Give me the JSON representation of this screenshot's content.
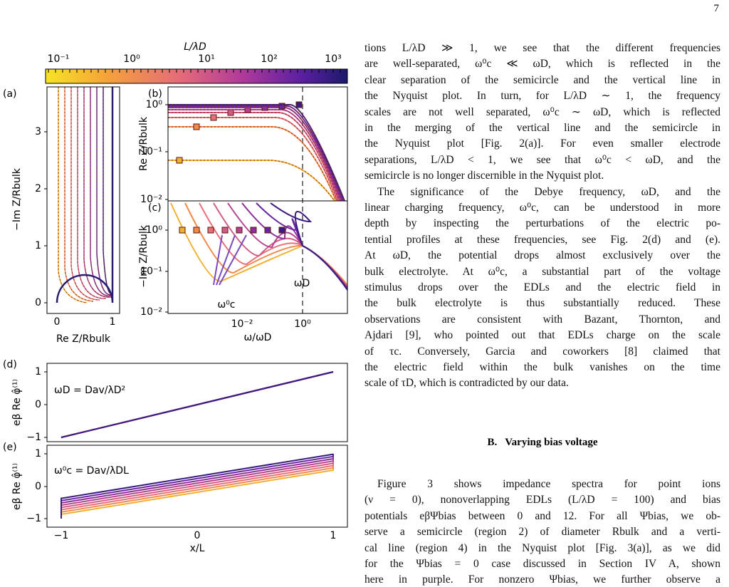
{
  "page_number": "7",
  "figure": {
    "colorbar": {
      "label": "L/λD",
      "ticks": [
        "10⁻¹",
        "10⁰",
        "10¹",
        "10²",
        "10³"
      ]
    },
    "panels": [
      {
        "label": "(a)",
        "x_label": "Re Z/Rbulk",
        "y_label": "−Im Z/Rbulk",
        "x_ticks": [
          "0",
          "1"
        ],
        "y_ticks": [
          "3",
          "2",
          "1",
          "0"
        ]
      },
      {
        "label": "(b)",
        "y_label": "Re Z/Rbulk",
        "y_ticks": [
          "10⁰",
          "10⁻¹",
          "10⁻²"
        ]
      },
      {
        "label": "(c)",
        "x_label": "ω/ωD",
        "y_label": "−Im Z/Rbulk",
        "x_ticks": [
          "10⁻²",
          "10⁰"
        ],
        "y_ticks": [
          "10⁰",
          "10⁻¹",
          "10⁻²"
        ]
      },
      {
        "label": "(d)",
        "y_label": "eβ Re φ̂⁽¹⁾",
        "y_ticks": [
          "1",
          "0",
          "−1"
        ],
        "annotation": "ωD = Dav/λD²"
      },
      {
        "label": "(e)",
        "x_label": "x/L",
        "y_label": "eβ Re φ̂⁽¹⁾",
        "x_ticks": [
          "−1",
          "0",
          "1"
        ],
        "y_ticks": [
          "1",
          "0",
          "−1"
        ],
        "annotation": "ω⁰c = Dav/λDL"
      }
    ],
    "annotations": {
      "omega_d": "ωD",
      "omega_c": "ω⁰c"
    }
  },
  "text": {
    "paragraph1": [
      "tions L/λD ≫ 1, we see that the different frequencies",
      "are well-separated, ω⁰c ≪ ωD, which is reflected in the",
      "clear separation of the semicircle and the vertical line in",
      "the Nyquist plot. In turn, for L/λD ∼ 1, the frequency",
      "scales are not well separated, ω⁰c ∼ ωD, which is reflected",
      "in the merging of the vertical line and the semicircle in",
      "the Nyquist plot [Fig. 2(a)]. For even smaller electrode",
      "separations, L/λD < 1, we see that ω⁰c < ωD, and the",
      "semicircle is no longer discernible in the Nyquist plot."
    ],
    "paragraph2": [
      "The significance of the Debye frequency, ωD, and the",
      "linear charging frequency, ω⁰c, can be understood in more",
      "depth by inspecting the perturbations of the electric po-",
      "tential profiles at these frequencies, see Fig. 2(d) and (e).",
      "At ωD, the potential drops almost exclusively over the",
      "bulk electrolyte. At ω⁰c, a substantial part of the voltage",
      "stimulus drops over the EDLs and the electric field in",
      "the bulk electrolyte is thus substantially reduced. These",
      "observations are consistent with Bazant, Thornton, and",
      "Ajdari [9], who pointed out that EDLs charge on the scale",
      "of τc. Conversely, Garcia and coworkers [8] claimed that",
      "the electric field within the bulk vanishes on the time",
      "scale of τD, which is contradicted by our data."
    ],
    "heading": "B.   Varying bias voltage",
    "paragraph3": [
      "Figure 3 shows impedance spectra for point ions",
      "(ν = 0), nonoverlapping EDLs (L/λD = 100) and bias",
      "potentials eβΨbias between 0 and 12. For all Ψbias, we ob-",
      "serve a semicircle (region 2) of diameter Rbulk and a verti-",
      "cal line (region 4) in the Nyquist plot [Fig. 3(a)], as we did",
      "for the Ψbias = 0 case discussed in Section IV A, shown",
      "here in purple. For nonzero Ψbias, we further observe a"
    ]
  }
}
